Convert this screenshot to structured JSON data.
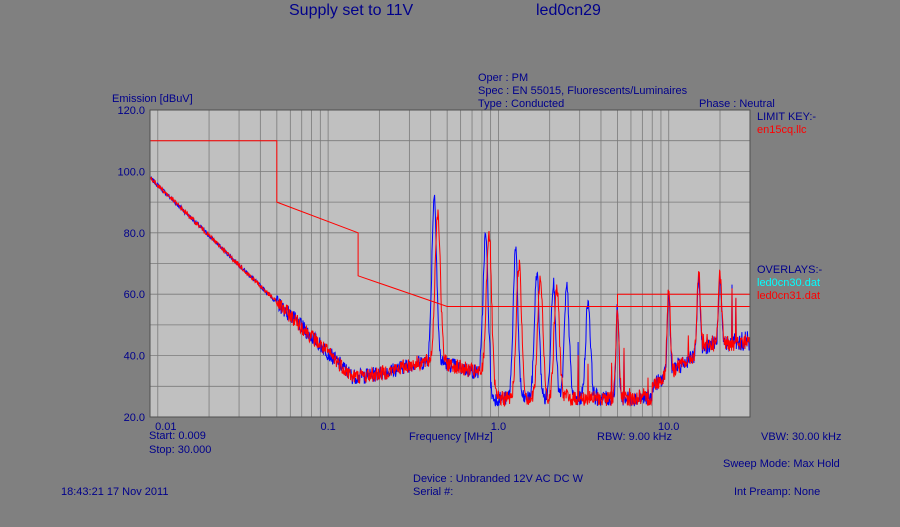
{
  "header": {
    "title_left": "Supply set to 11V",
    "title_right": "led0cn29"
  },
  "test_info": {
    "oper": "Oper : PM",
    "spec": "Spec : EN 55015, Fluorescents/Luminaires",
    "type": "Type : Conducted",
    "phase": "Phase : Neutral"
  },
  "legend": {
    "limit_key_label": "LIMIT KEY:-",
    "limit_file": "en15cq.llc",
    "overlays_label": "OVERLAYS:-",
    "overlay_1": "led0cn30.dat",
    "overlay_2": "led0cn31.dat"
  },
  "footer": {
    "start": "Start: 0.009",
    "stop": "Stop: 30.000",
    "rbw": "RBW: 9.00 kHz",
    "vbw": "VBW: 30.00 kHz",
    "sweep_mode": "Sweep Mode: Max Hold",
    "timestamp": "18:43:21 17 Nov 2011",
    "device": "Device : Unbranded 12V AC DC W",
    "serial": "Serial #:",
    "preamp": "Int Preamp: None"
  },
  "colors": {
    "plot_bg": "#c0c0c0",
    "limit": "#ff0000",
    "overlay_1": "#0000ff",
    "overlay_2": "#ff0000",
    "text": "#00008b",
    "overlay_1_label": "#00ffff",
    "overlay_2_label": "#ff0000"
  },
  "chart_data": {
    "type": "line",
    "ylabel": "Emission [dBuV]",
    "xlabel": "Frequency [MHz]",
    "x_scale": "log",
    "xlim": [
      0.009,
      30.0
    ],
    "ylim": [
      20,
      120
    ],
    "y_ticks": [
      "120.0",
      "100.0",
      "80.0",
      "60.0",
      "40.0",
      "20.0"
    ],
    "x_ticks": [
      {
        "value": 0.01,
        "label": "0.01"
      },
      {
        "value": 0.1,
        "label": "0.1"
      },
      {
        "value": 1.0,
        "label": "1.0"
      },
      {
        "value": 10.0,
        "label": "10.0"
      }
    ],
    "grid": true,
    "limit_line": {
      "name": "en15cq.llc",
      "x": [
        0.009,
        0.05,
        0.05,
        0.15,
        0.15,
        0.5,
        0.5,
        30.0
      ],
      "y": [
        110,
        110,
        90,
        80,
        66,
        56,
        56,
        56
      ]
    },
    "limit_line_2": {
      "x": [
        0.5,
        5.0,
        5.0,
        30.0
      ],
      "y": [
        56,
        56,
        60,
        60
      ]
    },
    "series": [
      {
        "name": "led0cn30.dat",
        "peaks": [
          {
            "x": 0.42,
            "y": 92
          },
          {
            "x": 0.84,
            "y": 79
          },
          {
            "x": 1.26,
            "y": 74
          },
          {
            "x": 1.68,
            "y": 67
          },
          {
            "x": 2.1,
            "y": 64
          },
          {
            "x": 2.52,
            "y": 62
          },
          {
            "x": 3.36,
            "y": 58
          },
          {
            "x": 5.0,
            "y": 55
          },
          {
            "x": 10.0,
            "y": 60
          },
          {
            "x": 15.0,
            "y": 66
          },
          {
            "x": 20.0,
            "y": 64
          }
        ]
      },
      {
        "name": "led0cn31.dat",
        "peaks": [
          {
            "x": 0.44,
            "y": 87
          },
          {
            "x": 0.88,
            "y": 80
          },
          {
            "x": 1.32,
            "y": 70
          },
          {
            "x": 1.76,
            "y": 65
          },
          {
            "x": 2.2,
            "y": 62
          },
          {
            "x": 5.0,
            "y": 56
          },
          {
            "x": 10.0,
            "y": 62
          },
          {
            "x": 15.0,
            "y": 68
          },
          {
            "x": 20.0,
            "y": 66
          }
        ]
      }
    ]
  }
}
